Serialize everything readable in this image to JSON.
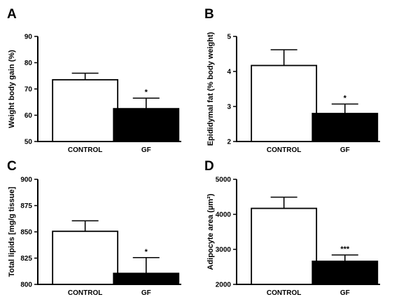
{
  "chart_data": [
    {
      "type": "bar",
      "panel": "A",
      "categories": [
        "CONTROL",
        "GF"
      ],
      "values": [
        73.5,
        62.5
      ],
      "errors": [
        2.5,
        4.0
      ],
      "significance": [
        "",
        "*"
      ],
      "fills": [
        "#ffffff",
        "#000000"
      ],
      "ylabel": "Weight body gain (%)",
      "ylim": [
        50,
        90
      ],
      "yticks": [
        50,
        60,
        70,
        80,
        90
      ]
    },
    {
      "type": "bar",
      "panel": "B",
      "categories": [
        "CONTROL",
        "GF"
      ],
      "values": [
        4.17,
        2.8
      ],
      "errors": [
        0.45,
        0.27
      ],
      "significance": [
        "",
        "*"
      ],
      "fills": [
        "#ffffff",
        "#000000"
      ],
      "ylabel": "Epididymal fat (% body weight)",
      "ylim": [
        2,
        5
      ],
      "yticks": [
        2,
        3,
        4,
        5
      ]
    },
    {
      "type": "bar",
      "panel": "C",
      "categories": [
        "CONTROL",
        "GF"
      ],
      "values": [
        850.5,
        810.5
      ],
      "errors": [
        10,
        15
      ],
      "significance": [
        "",
        "*"
      ],
      "fills": [
        "#ffffff",
        "#000000"
      ],
      "ylabel": "Total lipids [mg/g tissue]",
      "ylim": [
        800,
        900
      ],
      "yticks": [
        800,
        825,
        850,
        875,
        900
      ]
    },
    {
      "type": "bar",
      "panel": "D",
      "categories": [
        "CONTROL",
        "GF"
      ],
      "values": [
        4170,
        2660
      ],
      "errors": [
        320,
        180
      ],
      "significance": [
        "",
        "***"
      ],
      "fills": [
        "#ffffff",
        "#000000"
      ],
      "ylabel": "Adipocyte area (µm²)",
      "ylim": [
        2000,
        5000
      ],
      "yticks": [
        2000,
        3000,
        4000,
        5000
      ]
    }
  ]
}
